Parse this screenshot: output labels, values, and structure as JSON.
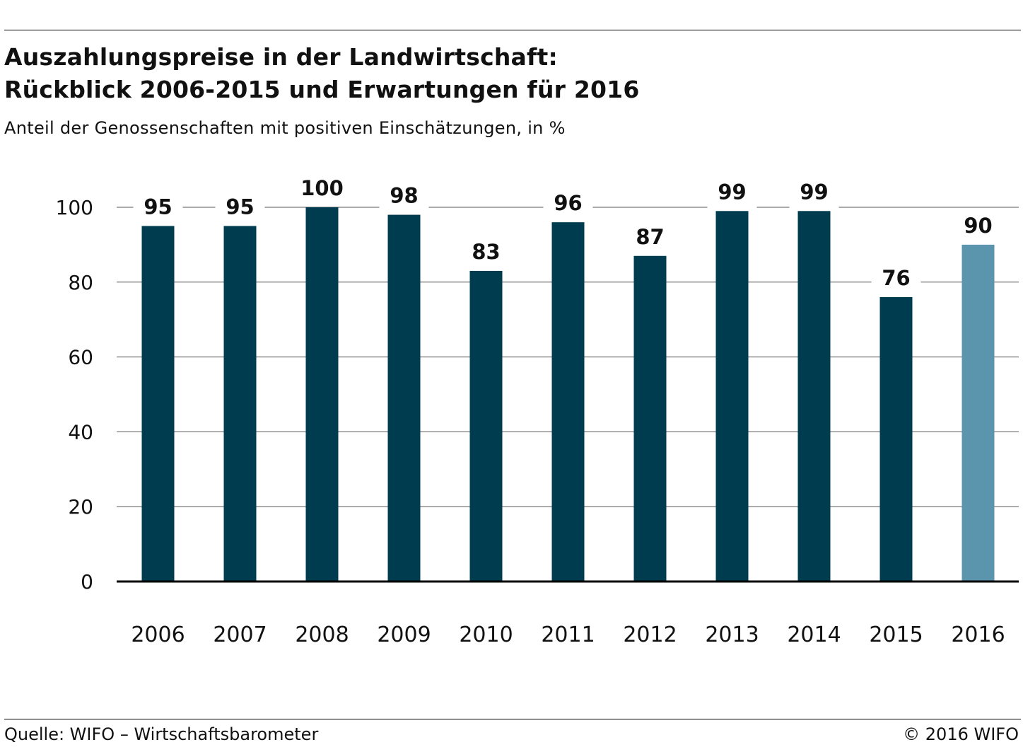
{
  "header": {
    "title_line1": "Auszahlungspreise in der Landwirtschaft:",
    "title_line2": "Rückblick 2006-2015 und Erwartungen für 2016",
    "subtitle": "Anteil der Genossenschaften mit positiven Einschätzungen, in %"
  },
  "footer": {
    "source": "Quelle: WIFO – Wirtschaftsbarometer",
    "copyright": "© 2016 WIFO"
  },
  "chart_data": {
    "type": "bar",
    "title": "Auszahlungspreise in der Landwirtschaft: Rückblick 2006-2015 und Erwartungen für 2016",
    "subtitle": "Anteil der Genossenschaften mit positiven Einschätzungen, in %",
    "categories": [
      "2006",
      "2007",
      "2008",
      "2009",
      "2010",
      "2011",
      "2012",
      "2013",
      "2014",
      "2015",
      "2016"
    ],
    "values": [
      95,
      95,
      100,
      98,
      83,
      96,
      87,
      99,
      99,
      76,
      90
    ],
    "data_labels": [
      "95",
      "95",
      "100",
      "98",
      "83",
      "96",
      "87",
      "99",
      "99",
      "76",
      "90"
    ],
    "ylim": [
      0,
      100
    ],
    "yticks": [
      0,
      20,
      40,
      60,
      80,
      100
    ],
    "xlabel": "",
    "ylabel": "",
    "grid": true,
    "legend": "none",
    "colors": {
      "actual": "#003c50",
      "expected": "#5b94ad",
      "grid": "#555555",
      "baseline": "#000000"
    },
    "highlighted_category": "2016"
  }
}
